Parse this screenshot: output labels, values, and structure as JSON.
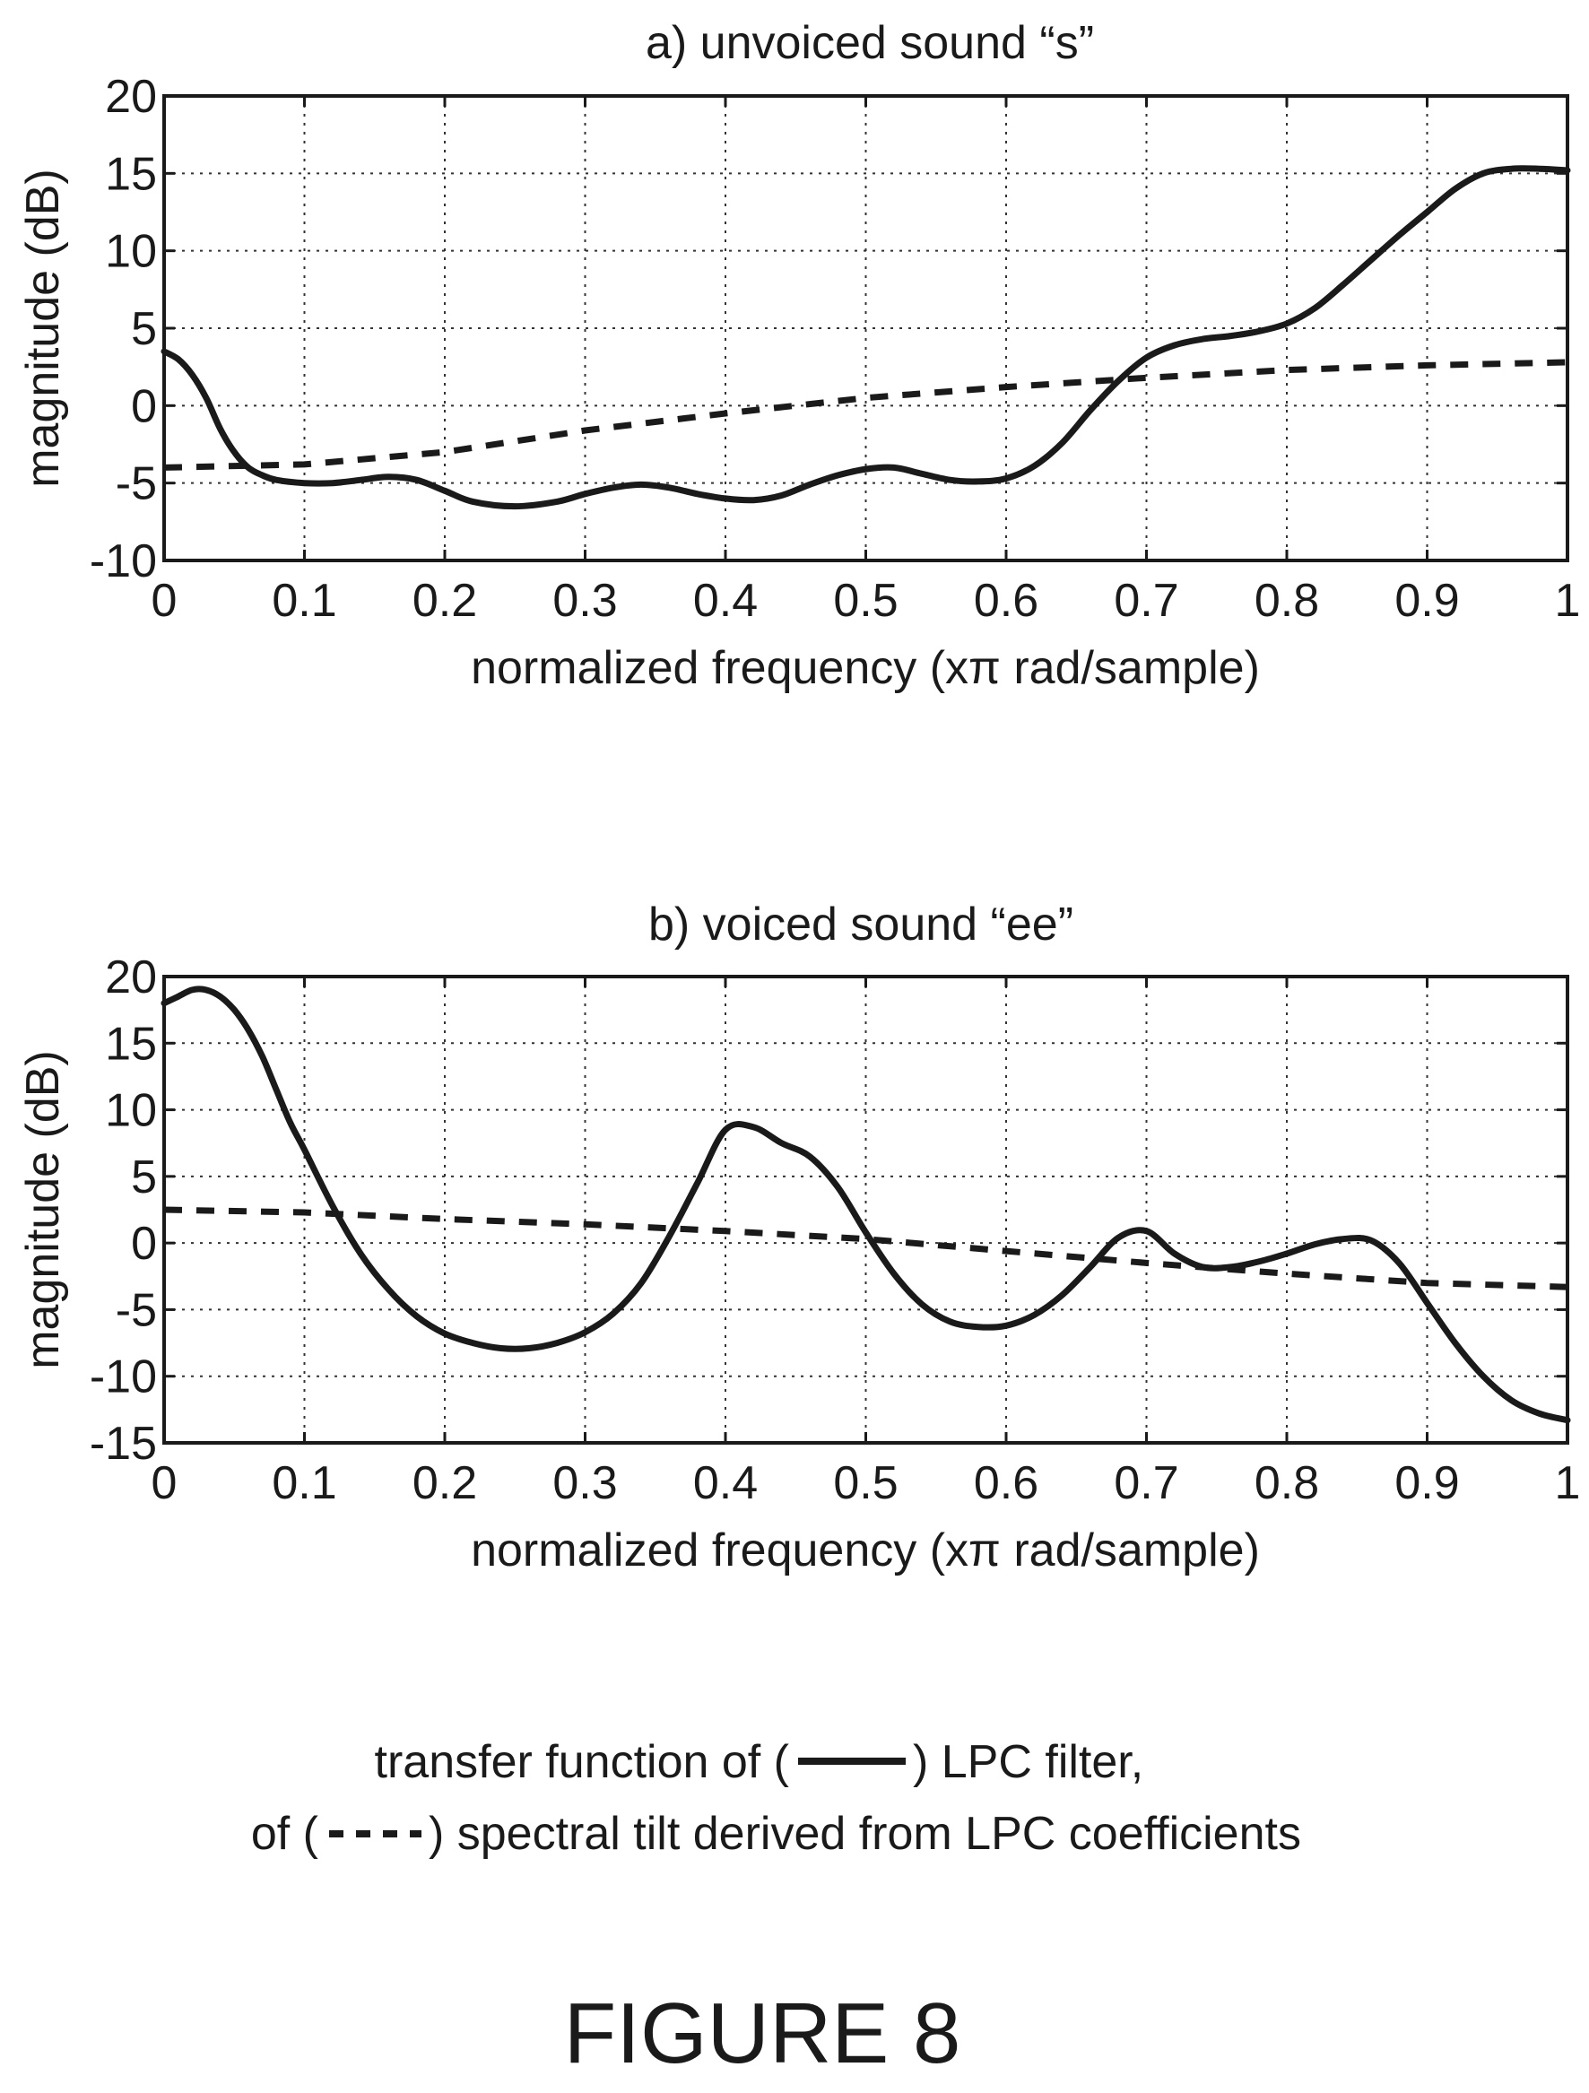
{
  "chart_data": [
    {
      "type": "line",
      "title": "a) unvoiced sound “s”",
      "xlabel": "normalized frequency (xπ rad/sample)",
      "ylabel": "magnitude (dB)",
      "xlim": [
        0,
        1
      ],
      "ylim": [
        -10,
        20
      ],
      "xticks": [
        "0",
        "0.1",
        "0.2",
        "0.3",
        "0.4",
        "0.5",
        "0.6",
        "0.7",
        "0.8",
        "0.9",
        "1"
      ],
      "yticks": [
        "20",
        "15",
        "10",
        "5",
        "0",
        "-5",
        "-10"
      ],
      "grid": true,
      "series": [
        {
          "style": "solid",
          "x": [
            0,
            0.01,
            0.02,
            0.03,
            0.04,
            0.05,
            0.06,
            0.07,
            0.08,
            0.1,
            0.12,
            0.14,
            0.16,
            0.18,
            0.2,
            0.22,
            0.25,
            0.28,
            0.3,
            0.32,
            0.34,
            0.36,
            0.38,
            0.4,
            0.42,
            0.44,
            0.46,
            0.48,
            0.5,
            0.52,
            0.54,
            0.56,
            0.58,
            0.6,
            0.62,
            0.64,
            0.66,
            0.68,
            0.7,
            0.72,
            0.74,
            0.76,
            0.78,
            0.8,
            0.82,
            0.84,
            0.86,
            0.88,
            0.9,
            0.92,
            0.94,
            0.96,
            0.98,
            1.0
          ],
          "y": [
            3.5,
            3.0,
            2.0,
            0.5,
            -1.5,
            -3.0,
            -4.0,
            -4.5,
            -4.8,
            -5.0,
            -5.0,
            -4.8,
            -4.6,
            -4.8,
            -5.5,
            -6.2,
            -6.5,
            -6.2,
            -5.7,
            -5.3,
            -5.1,
            -5.3,
            -5.7,
            -6.0,
            -6.1,
            -5.8,
            -5.1,
            -4.5,
            -4.1,
            -4.0,
            -4.4,
            -4.8,
            -4.9,
            -4.7,
            -3.9,
            -2.4,
            -0.3,
            1.6,
            3.1,
            3.9,
            4.3,
            4.5,
            4.8,
            5.3,
            6.3,
            7.8,
            9.4,
            11.0,
            12.5,
            14.0,
            15.0,
            15.3,
            15.3,
            15.2
          ]
        },
        {
          "style": "dashed",
          "x": [
            0,
            0.1,
            0.2,
            0.3,
            0.4,
            0.5,
            0.6,
            0.7,
            0.8,
            0.9,
            1.0
          ],
          "y": [
            -4.0,
            -3.8,
            -3.0,
            -1.6,
            -0.5,
            0.5,
            1.2,
            1.8,
            2.3,
            2.6,
            2.8
          ]
        }
      ]
    },
    {
      "type": "line",
      "title": "b) voiced sound “ee”",
      "xlabel": "normalized frequency (xπ rad/sample)",
      "ylabel": "magnitude (dB)",
      "xlim": [
        0,
        1
      ],
      "ylim": [
        -15,
        20
      ],
      "xticks": [
        "0",
        "0.1",
        "0.2",
        "0.3",
        "0.4",
        "0.5",
        "0.6",
        "0.7",
        "0.8",
        "0.9",
        "1"
      ],
      "yticks": [
        "20",
        "15",
        "10",
        "5",
        "0",
        "-5",
        "-10",
        "-15"
      ],
      "grid": true,
      "series": [
        {
          "style": "solid",
          "x": [
            0,
            0.01,
            0.02,
            0.03,
            0.04,
            0.05,
            0.06,
            0.07,
            0.08,
            0.09,
            0.1,
            0.12,
            0.14,
            0.16,
            0.18,
            0.2,
            0.22,
            0.24,
            0.26,
            0.28,
            0.3,
            0.32,
            0.34,
            0.36,
            0.38,
            0.4,
            0.42,
            0.44,
            0.46,
            0.48,
            0.5,
            0.52,
            0.54,
            0.56,
            0.58,
            0.6,
            0.62,
            0.64,
            0.66,
            0.68,
            0.7,
            0.72,
            0.74,
            0.76,
            0.78,
            0.8,
            0.82,
            0.84,
            0.86,
            0.88,
            0.9,
            0.92,
            0.94,
            0.96,
            0.98,
            1.0
          ],
          "y": [
            18.0,
            18.5,
            19.0,
            19.0,
            18.5,
            17.5,
            16.0,
            14.0,
            11.5,
            9.0,
            7.0,
            2.8,
            -0.8,
            -3.5,
            -5.5,
            -6.8,
            -7.5,
            -7.9,
            -7.9,
            -7.5,
            -6.7,
            -5.3,
            -3.0,
            0.5,
            4.5,
            8.5,
            8.7,
            7.5,
            6.5,
            4.2,
            0.8,
            -2.3,
            -4.6,
            -5.9,
            -6.3,
            -6.2,
            -5.4,
            -3.9,
            -1.8,
            0.4,
            0.9,
            -0.8,
            -1.8,
            -1.8,
            -1.4,
            -0.8,
            -0.1,
            0.3,
            0.2,
            -1.5,
            -4.5,
            -7.5,
            -10.0,
            -11.8,
            -12.8,
            -13.3
          ]
        },
        {
          "style": "dashed",
          "x": [
            0,
            0.1,
            0.2,
            0.3,
            0.4,
            0.5,
            0.6,
            0.7,
            0.8,
            0.9,
            1.0
          ],
          "y": [
            2.5,
            2.3,
            1.8,
            1.4,
            0.9,
            0.3,
            -0.6,
            -1.5,
            -2.3,
            -3.0,
            -3.3
          ]
        }
      ]
    }
  ],
  "legend": {
    "line1_before": "transfer function of (",
    "line1_after": ") LPC filter,",
    "line2_before": "of (",
    "line2_after": ") spectral tilt derived from LPC coefficients"
  },
  "figure_label": "FIGURE 8"
}
